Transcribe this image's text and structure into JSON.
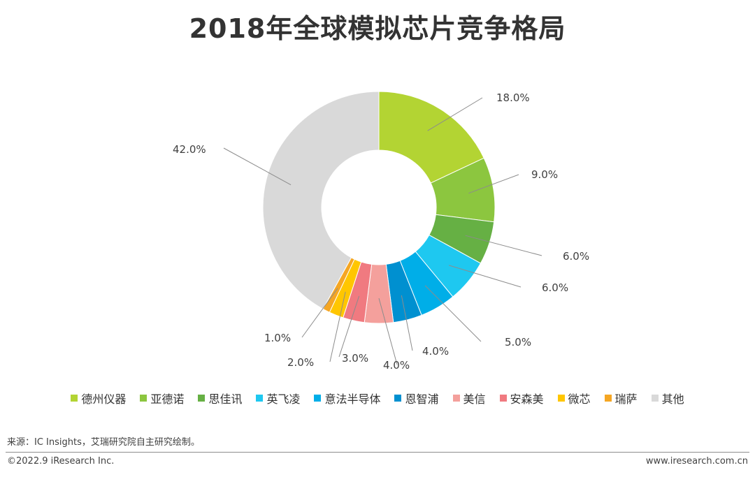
{
  "chart_data": {
    "type": "pie",
    "title": "2018年全球模拟芯片竞争格局",
    "donut": true,
    "legend_position": "bottom",
    "slices": [
      {
        "name": "德州仪器",
        "value": 18.0,
        "label": "18.0%",
        "color": "#b3d433"
      },
      {
        "name": "亚德诺",
        "value": 9.0,
        "label": "9.0%",
        "color": "#8cc63f"
      },
      {
        "name": "思佳讯",
        "value": 6.0,
        "label": "6.0%",
        "color": "#66b044"
      },
      {
        "name": "英飞凌",
        "value": 6.0,
        "label": "6.0%",
        "color": "#1ec8f0"
      },
      {
        "name": "意法半导体",
        "value": 5.0,
        "label": "5.0%",
        "color": "#00aee8"
      },
      {
        "name": "恩智浦",
        "value": 4.0,
        "label": "4.0%",
        "color": "#0090d0"
      },
      {
        "name": "美信",
        "value": 4.0,
        "label": "4.0%",
        "color": "#f4a09c"
      },
      {
        "name": "安森美",
        "value": 3.0,
        "label": "3.0%",
        "color": "#f07a80"
      },
      {
        "name": "微芯",
        "value": 2.0,
        "label": "2.0%",
        "color": "#ffc600"
      },
      {
        "name": "瑞萨",
        "value": 1.0,
        "label": "1.0%",
        "color": "#f5a623"
      },
      {
        "name": "其他",
        "value": 42.0,
        "label": "42.0%",
        "color": "#d9d9d9"
      }
    ]
  },
  "source": "来源：IC Insights，艾瑞研究院自主研究绘制。",
  "footer": {
    "copyright": "©2022.9 iResearch Inc.",
    "website": "www.iresearch.com.cn"
  }
}
